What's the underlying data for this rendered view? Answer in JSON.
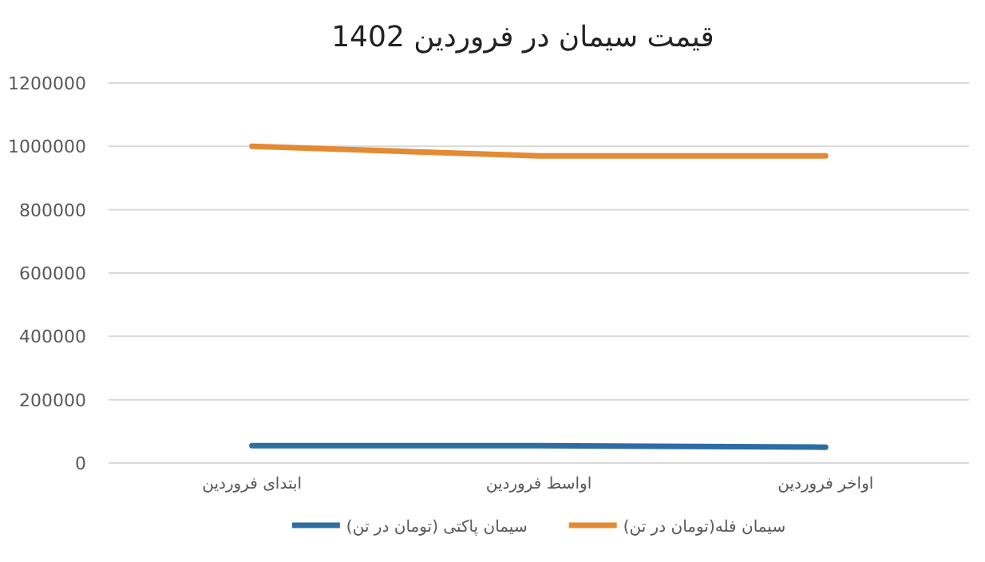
{
  "chart_data": {
    "type": "line",
    "title": "قیمت سیمان در فروردین 1402",
    "categories": [
      "ابتدای فروردین",
      "اواسط فروردین",
      "اواخر فروردین"
    ],
    "series": [
      {
        "name": "سیمان پاکتی (تومان در تن)",
        "color": "#2e6ca4",
        "values": [
          55000,
          55000,
          50000
        ]
      },
      {
        "name": "سیمان فله(تومان در تن)",
        "color": "#e38a33",
        "values": [
          1000000,
          970000,
          970000
        ]
      }
    ],
    "ylim": [
      0,
      1200000
    ],
    "yticks": [
      0,
      200000,
      400000,
      600000,
      800000,
      1000000,
      1200000
    ],
    "grid": "y",
    "legend": "bottom",
    "marker": "none",
    "line_style": "solid"
  }
}
